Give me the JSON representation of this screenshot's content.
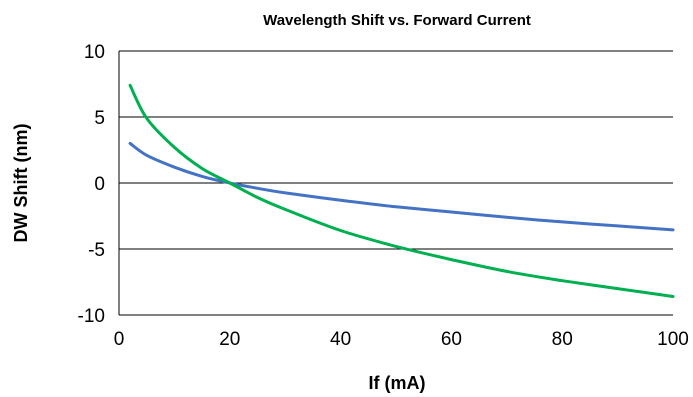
{
  "chart_data": {
    "type": "line",
    "title": "Wavelength Shift vs. Forward Current",
    "xlabel": "If (mA)",
    "ylabel": "DW Shift (nm)",
    "xlim": [
      0,
      100
    ],
    "ylim": [
      -10,
      10
    ],
    "x_ticks": [
      "0",
      "20",
      "40",
      "60",
      "80",
      "100"
    ],
    "y_ticks": [
      "10",
      "5",
      "0",
      "-5",
      "-10"
    ],
    "grid": "horizontal",
    "series": [
      {
        "color": "#4472C4",
        "x": [
          2,
          5,
          10,
          15,
          20,
          25,
          30,
          40,
          50,
          60,
          70,
          80,
          90,
          100
        ],
        "y": [
          3.0,
          2.1,
          1.2,
          0.5,
          0.0,
          -0.4,
          -0.75,
          -1.3,
          -1.8,
          -2.2,
          -2.6,
          -2.95,
          -3.25,
          -3.55
        ]
      },
      {
        "color": "#00B050",
        "x": [
          2,
          5,
          10,
          15,
          20,
          25,
          30,
          40,
          50,
          60,
          70,
          80,
          90,
          100
        ],
        "y": [
          7.4,
          4.9,
          2.7,
          1.1,
          0.0,
          -1.1,
          -2.0,
          -3.6,
          -4.8,
          -5.8,
          -6.7,
          -7.4,
          -8.0,
          -8.6
        ]
      }
    ]
  }
}
